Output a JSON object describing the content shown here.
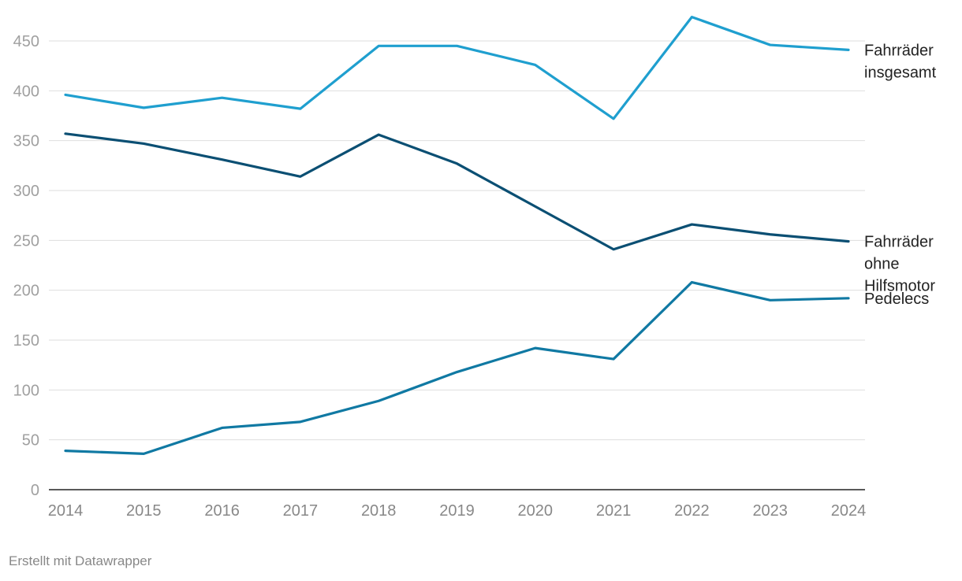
{
  "credit": "Erstellt mit Datawrapper",
  "chart_data": {
    "type": "line",
    "x": [
      2014,
      2015,
      2016,
      2017,
      2018,
      2019,
      2020,
      2021,
      2022,
      2023,
      2024
    ],
    "ylim": [
      0,
      450
    ],
    "yticks": [
      0,
      50,
      100,
      150,
      200,
      250,
      300,
      350,
      400,
      450
    ],
    "grid": true,
    "title": "",
    "xlabel": "",
    "ylabel": "",
    "series": [
      {
        "name": "Fahrräder insgesamt",
        "label_lines": [
          "Fahrräder",
          "insgesamt"
        ],
        "color": "#1f9fcf",
        "values": [
          396,
          383,
          393,
          382,
          445,
          445,
          426,
          372,
          474,
          446,
          441
        ]
      },
      {
        "name": "Fahrräder ohne Hilfsmotor",
        "label_lines": [
          "Fahrräder",
          "ohne",
          "Hilfsmotor"
        ],
        "color": "#0b4f73",
        "values": [
          357,
          347,
          331,
          314,
          356,
          327,
          284,
          241,
          266,
          256,
          249
        ]
      },
      {
        "name": "Pedelecs",
        "label_lines": [
          "Pedelecs"
        ],
        "color": "#1079a3",
        "values": [
          39,
          36,
          62,
          68,
          89,
          118,
          142,
          131,
          208,
          190,
          192
        ]
      }
    ]
  }
}
